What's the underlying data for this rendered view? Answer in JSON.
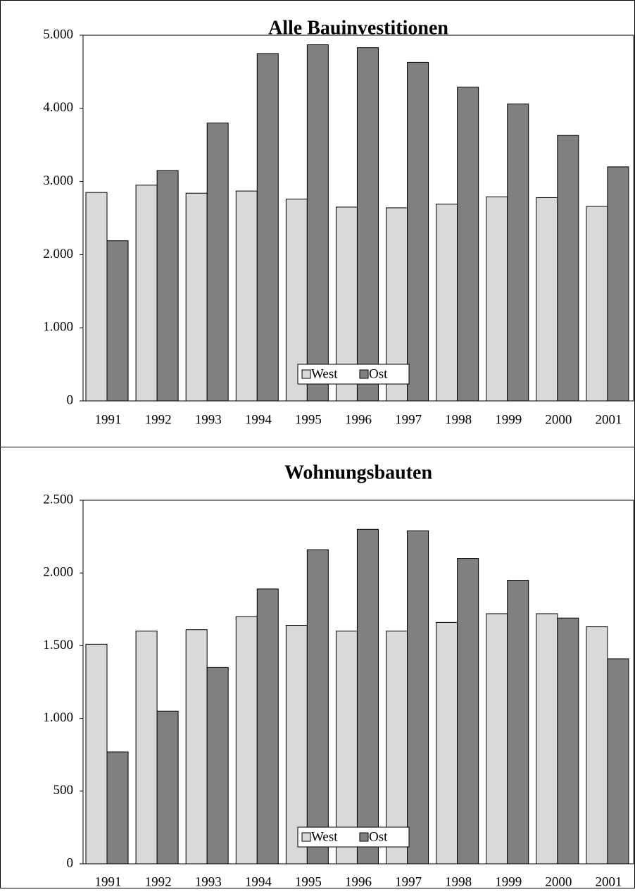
{
  "chart_data": [
    {
      "type": "bar",
      "title": "Alle Bauinvestitionen",
      "categories": [
        "1991",
        "1992",
        "1993",
        "1994",
        "1995",
        "1996",
        "1997",
        "1998",
        "1999",
        "2000",
        "2001"
      ],
      "series": [
        {
          "name": "West",
          "color": "#d9d9d9",
          "values": [
            2850,
            2950,
            2840,
            2870,
            2760,
            2650,
            2640,
            2690,
            2790,
            2780,
            2660
          ]
        },
        {
          "name": "Ost",
          "color": "#808080",
          "values": [
            2190,
            3150,
            3800,
            4750,
            4870,
            4830,
            4630,
            4290,
            4060,
            3630,
            3200
          ]
        }
      ],
      "ylim": [
        0,
        5000
      ],
      "yticks": [
        0,
        {
          "value": 1000,
          "label": "1.000"
        },
        {
          "value": 2000,
          "label": "2.000"
        },
        {
          "value": 3000,
          "label": "3.000"
        },
        {
          "value": 4000,
          "label": "4.000"
        },
        {
          "value": 5000,
          "label": "5.000"
        }
      ],
      "grid": false,
      "legend": "bottom"
    },
    {
      "type": "bar",
      "title": "Wohnungsbauten",
      "categories": [
        "1991",
        "1992",
        "1993",
        "1994",
        "1995",
        "1996",
        "1997",
        "1998",
        "1999",
        "2000",
        "2001"
      ],
      "series": [
        {
          "name": "West",
          "color": "#d9d9d9",
          "values": [
            1510,
            1600,
            1610,
            1700,
            1640,
            1600,
            1600,
            1660,
            1720,
            1720,
            1630
          ]
        },
        {
          "name": "Ost",
          "color": "#808080",
          "values": [
            770,
            1050,
            1350,
            1890,
            2160,
            2300,
            2290,
            2100,
            1950,
            1690,
            1410
          ]
        }
      ],
      "ylim": [
        0,
        2500
      ],
      "yticks": [
        0,
        500,
        {
          "value": 1000,
          "label": "1.000"
        },
        {
          "value": 1500,
          "label": "1.500"
        },
        {
          "value": 2000,
          "label": "2.000"
        },
        {
          "value": 2500,
          "label": "2.500"
        }
      ],
      "grid": false,
      "legend": "bottom"
    }
  ]
}
